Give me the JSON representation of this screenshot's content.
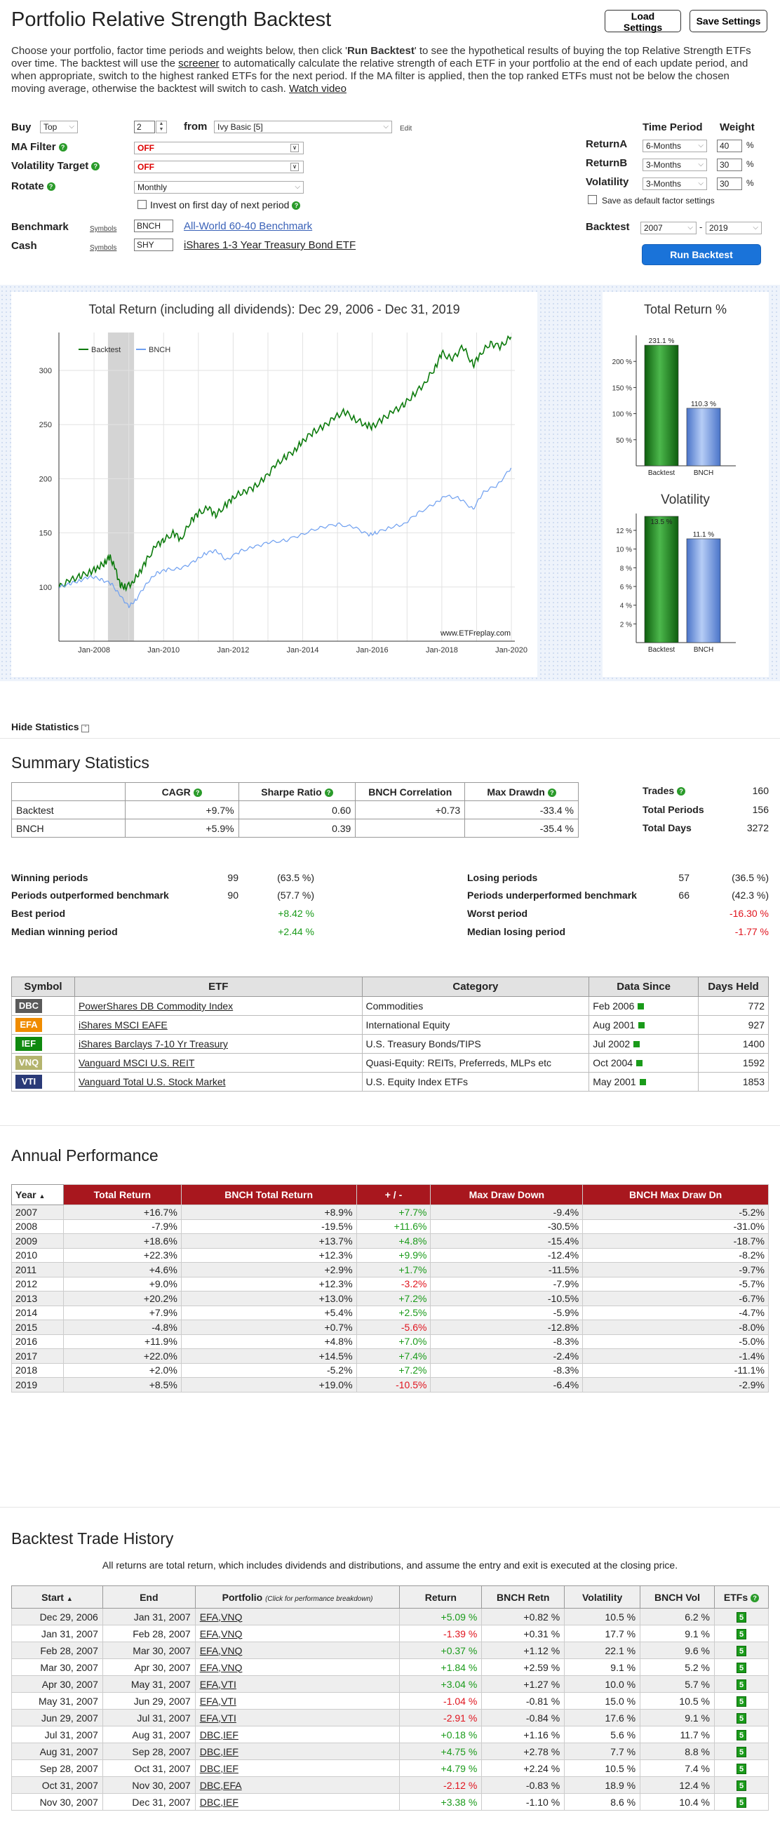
{
  "header": {
    "title": "Portfolio Relative Strength Backtest",
    "load_settings": "Load Settings",
    "save_settings": "Save Settings",
    "intro_1": "Choose your portfolio, factor time periods and weights below, then click '",
    "intro_bold": "Run Backtest",
    "intro_2": "' to see the hypothetical results of buying the top Relative Strength ETFs over time. The backtest will use the ",
    "intro_link": "screener",
    "intro_3": " to automatically calculate the relative strength of each ETF in your portfolio at the end of each update period, and when appropriate, switch to the highest ranked ETFs for the next period. If the MA filter is applied, then the top ranked ETFs must not be below the chosen moving average, otherwise the backtest will switch to cash. ",
    "watch_video": "Watch video"
  },
  "form": {
    "buy_label": "Buy",
    "buy_mode": "Top",
    "buy_count": "2",
    "from_label": "from",
    "portfolio": "Ivy Basic [5]",
    "edit": "Edit",
    "ma_filter_label": "MA Filter",
    "ma_filter": "OFF",
    "vol_target_label": "Volatility Target",
    "vol_target": "OFF",
    "rotate_label": "Rotate",
    "rotate": "Monthly",
    "invest_first_day": "Invest on first day of next period",
    "benchmark_label": "Benchmark",
    "cash_label": "Cash",
    "symbols": "Symbols",
    "benchmark_symbol": "BNCH",
    "benchmark_name": "All-World 60-40 Benchmark",
    "cash_symbol": "SHY",
    "cash_name": "iShares 1-3 Year Treasury Bond ETF",
    "time_period_label": "Time Period",
    "weight_label": "Weight",
    "factors": [
      {
        "name": "ReturnA",
        "period": "6-Months",
        "weight": "40",
        "unit": "%"
      },
      {
        "name": "ReturnB",
        "period": "3-Months",
        "weight": "30",
        "unit": "%"
      },
      {
        "name": "Volatility",
        "period": "3-Months",
        "weight": "30",
        "unit": "%"
      }
    ],
    "save_default": "Save as default factor settings",
    "backtest_label": "Backtest",
    "start_year": "2007",
    "dash": "-",
    "end_year": "2019",
    "run_backtest": "Run Backtest"
  },
  "chart_data": [
    {
      "type": "line",
      "title": "Total Return (including all dividends): Dec 29, 2006 - Dec 31, 2019",
      "watermark": "www.ETFreplay.com",
      "x_ticks": [
        "Jan-2008",
        "Jan-2010",
        "Jan-2012",
        "Jan-2014",
        "Jan-2016",
        "Jan-2018",
        "Jan-2020"
      ],
      "y_ticks": [
        100,
        150,
        200,
        250,
        300
      ],
      "ylim": [
        50,
        335
      ],
      "xlim": [
        2006.99,
        2020.1
      ],
      "shaded_region": [
        2008.4,
        2009.15
      ],
      "series": [
        {
          "name": "Backtest",
          "color": "#0b7a0b",
          "x": [
            2007.0,
            2007.3,
            2007.6,
            2007.9,
            2008.1,
            2008.3,
            2008.45,
            2008.6,
            2008.75,
            2008.9,
            2009.1,
            2009.3,
            2009.5,
            2009.8,
            2010.0,
            2010.3,
            2010.5,
            2010.8,
            2011.0,
            2011.3,
            2011.5,
            2011.8,
            2012.0,
            2012.3,
            2012.6,
            2012.9,
            2013.2,
            2013.5,
            2013.8,
            2014.0,
            2014.3,
            2014.6,
            2014.9,
            2015.2,
            2015.5,
            2015.8,
            2016.0,
            2016.3,
            2016.6,
            2016.9,
            2017.2,
            2017.5,
            2017.8,
            2018.0,
            2018.3,
            2018.6,
            2018.9,
            2019.1,
            2019.4,
            2019.7,
            2019.99
          ],
          "y": [
            100,
            106,
            110,
            114,
            118,
            122,
            128,
            118,
            102,
            100,
            104,
            113,
            124,
            139,
            143,
            150,
            144,
            162,
            168,
            173,
            166,
            176,
            183,
            188,
            192,
            200,
            212,
            220,
            227,
            235,
            243,
            248,
            256,
            262,
            255,
            250,
            248,
            255,
            262,
            268,
            278,
            288,
            302,
            316,
            310,
            322,
            305,
            315,
            325,
            322,
            331
          ]
        },
        {
          "name": "BNCH",
          "color": "#6e9ff0",
          "x": [
            2007.0,
            2007.3,
            2007.6,
            2007.9,
            2008.2,
            2008.5,
            2008.75,
            2009.0,
            2009.2,
            2009.5,
            2009.8,
            2010.1,
            2010.5,
            2010.9,
            2011.2,
            2011.5,
            2011.8,
            2012.2,
            2012.6,
            2013.0,
            2013.5,
            2014.0,
            2014.5,
            2015.0,
            2015.5,
            2015.9,
            2016.1,
            2016.5,
            2016.9,
            2017.3,
            2017.8,
            2018.1,
            2018.5,
            2018.9,
            2019.2,
            2019.6,
            2019.99
          ],
          "y": [
            100,
            103,
            106,
            110,
            107,
            103,
            92,
            82,
            88,
            103,
            113,
            116,
            117,
            124,
            131,
            134,
            125,
            133,
            137,
            141,
            143,
            149,
            155,
            158,
            155,
            148,
            150,
            155,
            158,
            168,
            177,
            184,
            182,
            172,
            188,
            194,
            210
          ]
        }
      ]
    },
    {
      "type": "bar",
      "title": "Total Return %",
      "categories": [
        "Backtest",
        "BNCH"
      ],
      "values": [
        231.1,
        110.3
      ],
      "labels": [
        "231.1 %",
        "110.3 %"
      ],
      "y_ticks": [
        "50 %",
        "100 %",
        "150 %",
        "200 %"
      ],
      "ylim": [
        0,
        250
      ],
      "colors": [
        "#1f8a1f",
        "#7da3e8"
      ]
    },
    {
      "type": "bar",
      "title": "Volatility",
      "categories": [
        "Backtest",
        "BNCH"
      ],
      "values": [
        13.5,
        11.1
      ],
      "labels": [
        "13.5 %",
        "11.1 %"
      ],
      "y_ticks": [
        "2 %",
        "4 %",
        "6 %",
        "8 %",
        "10 %",
        "12 %"
      ],
      "ylim": [
        0,
        13.8
      ],
      "colors": [
        "#1f8a1f",
        "#7da3e8"
      ]
    }
  ],
  "hide_statistics": "Hide Statistics",
  "summary": {
    "title": "Summary Statistics",
    "headers": [
      "",
      "CAGR",
      "Sharpe Ratio",
      "BNCH Correlation",
      "Max Drawdn"
    ],
    "rows": [
      [
        "Backtest",
        "+9.7%",
        "0.60",
        "+0.73",
        "-33.4 %"
      ],
      [
        "BNCH",
        "+5.9%",
        "0.39",
        "",
        "-35.4 %"
      ]
    ],
    "trades_label": "Trades",
    "trades": "160",
    "total_periods_label": "Total Periods",
    "total_periods": "156",
    "total_days_label": "Total Days",
    "total_days": "3272",
    "winning_label": "Winning periods",
    "winning": "99",
    "winning_pct": "(63.5 %)",
    "outperf_label": "Periods outperformed benchmark",
    "outperf": "90",
    "outperf_pct": "(57.7 %)",
    "best_label": "Best period",
    "best": "+8.42 %",
    "median_win_label": "Median winning period",
    "median_win": "+2.44 %",
    "losing_label": "Losing periods",
    "losing": "57",
    "losing_pct": "(36.5 %)",
    "underperf_label": "Periods underperformed benchmark",
    "underperf": "66",
    "underperf_pct": "(42.3 %)",
    "worst_label": "Worst period",
    "worst": "-16.30 %",
    "median_lose_label": "Median losing period",
    "median_lose": "-1.77 %"
  },
  "etf_table": {
    "headers": [
      "Symbol",
      "ETF",
      "Category",
      "Data Since",
      "Days Held"
    ],
    "rows": [
      {
        "symbol": "DBC",
        "color": "#5a5a5a",
        "name": "PowerShares DB Commodity Index",
        "category": "Commodities",
        "since": "Feb 2006",
        "days": "772"
      },
      {
        "symbol": "EFA",
        "color": "#f08c00",
        "name": "iShares MSCI EAFE",
        "category": "International Equity",
        "since": "Aug 2001",
        "days": "927"
      },
      {
        "symbol": "IEF",
        "color": "#0f8a0f",
        "name": "iShares Barclays 7-10 Yr Treasury",
        "category": "U.S. Treasury Bonds/TIPS",
        "since": "Jul 2002",
        "days": "1400"
      },
      {
        "symbol": "VNQ",
        "color": "#b4b46e",
        "name": "Vanguard MSCI U.S. REIT",
        "category": "Quasi-Equity: REITs, Preferreds, MLPs etc",
        "since": "Oct 2004",
        "days": "1592"
      },
      {
        "symbol": "VTI",
        "color": "#2a3a78",
        "name": "Vanguard Total U.S. Stock Market",
        "category": "U.S. Equity Index ETFs",
        "since": "May 2001",
        "days": "1853"
      }
    ]
  },
  "annual": {
    "title": "Annual Performance",
    "headers": [
      "Year",
      "Total Return",
      "BNCH Total Return",
      "+ / -",
      "Max Draw Down",
      "BNCH Max Draw Dn"
    ],
    "rows": [
      [
        "2007",
        "+16.7%",
        "+8.9%",
        "+7.7%",
        "-9.4%",
        "-5.2%"
      ],
      [
        "2008",
        "-7.9%",
        "-19.5%",
        "+11.6%",
        "-30.5%",
        "-31.0%"
      ],
      [
        "2009",
        "+18.6%",
        "+13.7%",
        "+4.8%",
        "-15.4%",
        "-18.7%"
      ],
      [
        "2010",
        "+22.3%",
        "+12.3%",
        "+9.9%",
        "-12.4%",
        "-8.2%"
      ],
      [
        "2011",
        "+4.6%",
        "+2.9%",
        "+1.7%",
        "-11.5%",
        "-9.7%"
      ],
      [
        "2012",
        "+9.0%",
        "+12.3%",
        "-3.2%",
        "-7.9%",
        "-5.7%"
      ],
      [
        "2013",
        "+20.2%",
        "+13.0%",
        "+7.2%",
        "-10.5%",
        "-6.7%"
      ],
      [
        "2014",
        "+7.9%",
        "+5.4%",
        "+2.5%",
        "-5.9%",
        "-4.7%"
      ],
      [
        "2015",
        "-4.8%",
        "+0.7%",
        "-5.6%",
        "-12.8%",
        "-8.0%"
      ],
      [
        "2016",
        "+11.9%",
        "+4.8%",
        "+7.0%",
        "-8.3%",
        "-5.0%"
      ],
      [
        "2017",
        "+22.0%",
        "+14.5%",
        "+7.4%",
        "-2.4%",
        "-1.4%"
      ],
      [
        "2018",
        "+2.0%",
        "-5.2%",
        "+7.2%",
        "-8.3%",
        "-11.1%"
      ],
      [
        "2019",
        "+8.5%",
        "+19.0%",
        "-10.5%",
        "-6.4%",
        "-2.9%"
      ]
    ]
  },
  "trades": {
    "title": "Backtest Trade History",
    "note": "All returns are total return, which includes dividends and distributions, and assume the entry and exit is executed at the closing price.",
    "headers": [
      "Start",
      "End",
      "Portfolio",
      "Return",
      "BNCH Retn",
      "Volatility",
      "BNCH Vol",
      "ETFs"
    ],
    "portfolio_hint": "(Click for performance breakdown)",
    "rows": [
      [
        "Dec 29, 2006",
        "Jan 31, 2007",
        "EFA,VNQ",
        "+5.09 %",
        "+0.82 %",
        "10.5 %",
        "6.2 %",
        "5"
      ],
      [
        "Jan 31, 2007",
        "Feb 28, 2007",
        "EFA,VNQ",
        "-1.39 %",
        "+0.31 %",
        "17.7 %",
        "9.1 %",
        "5"
      ],
      [
        "Feb 28, 2007",
        "Mar 30, 2007",
        "EFA,VNQ",
        "+0.37 %",
        "+1.12 %",
        "22.1 %",
        "9.6 %",
        "5"
      ],
      [
        "Mar 30, 2007",
        "Apr 30, 2007",
        "EFA,VNQ",
        "+1.84 %",
        "+2.59 %",
        "9.1 %",
        "5.2 %",
        "5"
      ],
      [
        "Apr 30, 2007",
        "May 31, 2007",
        "EFA,VTI",
        "+3.04 %",
        "+1.27 %",
        "10.0 %",
        "5.7 %",
        "5"
      ],
      [
        "May 31, 2007",
        "Jun 29, 2007",
        "EFA,VTI",
        "-1.04 %",
        "-0.81 %",
        "15.0 %",
        "10.5 %",
        "5"
      ],
      [
        "Jun 29, 2007",
        "Jul 31, 2007",
        "EFA,VTI",
        "-2.91 %",
        "-0.84 %",
        "17.6 %",
        "9.1 %",
        "5"
      ],
      [
        "Jul 31, 2007",
        "Aug 31, 2007",
        "DBC,IEF",
        "+0.18 %",
        "+1.16 %",
        "5.6 %",
        "11.7 %",
        "5"
      ],
      [
        "Aug 31, 2007",
        "Sep 28, 2007",
        "DBC,IEF",
        "+4.75 %",
        "+2.78 %",
        "7.7 %",
        "8.8 %",
        "5"
      ],
      [
        "Sep 28, 2007",
        "Oct 31, 2007",
        "DBC,IEF",
        "+4.79 %",
        "+2.24 %",
        "10.5 %",
        "7.4 %",
        "5"
      ],
      [
        "Oct 31, 2007",
        "Nov 30, 2007",
        "DBC,EFA",
        "-2.12 %",
        "-0.83 %",
        "18.9 %",
        "12.4 %",
        "5"
      ],
      [
        "Nov 30, 2007",
        "Dec 31, 2007",
        "DBC,IEF",
        "+3.38 %",
        "-1.10 %",
        "8.6 %",
        "10.4 %",
        "5"
      ]
    ]
  }
}
